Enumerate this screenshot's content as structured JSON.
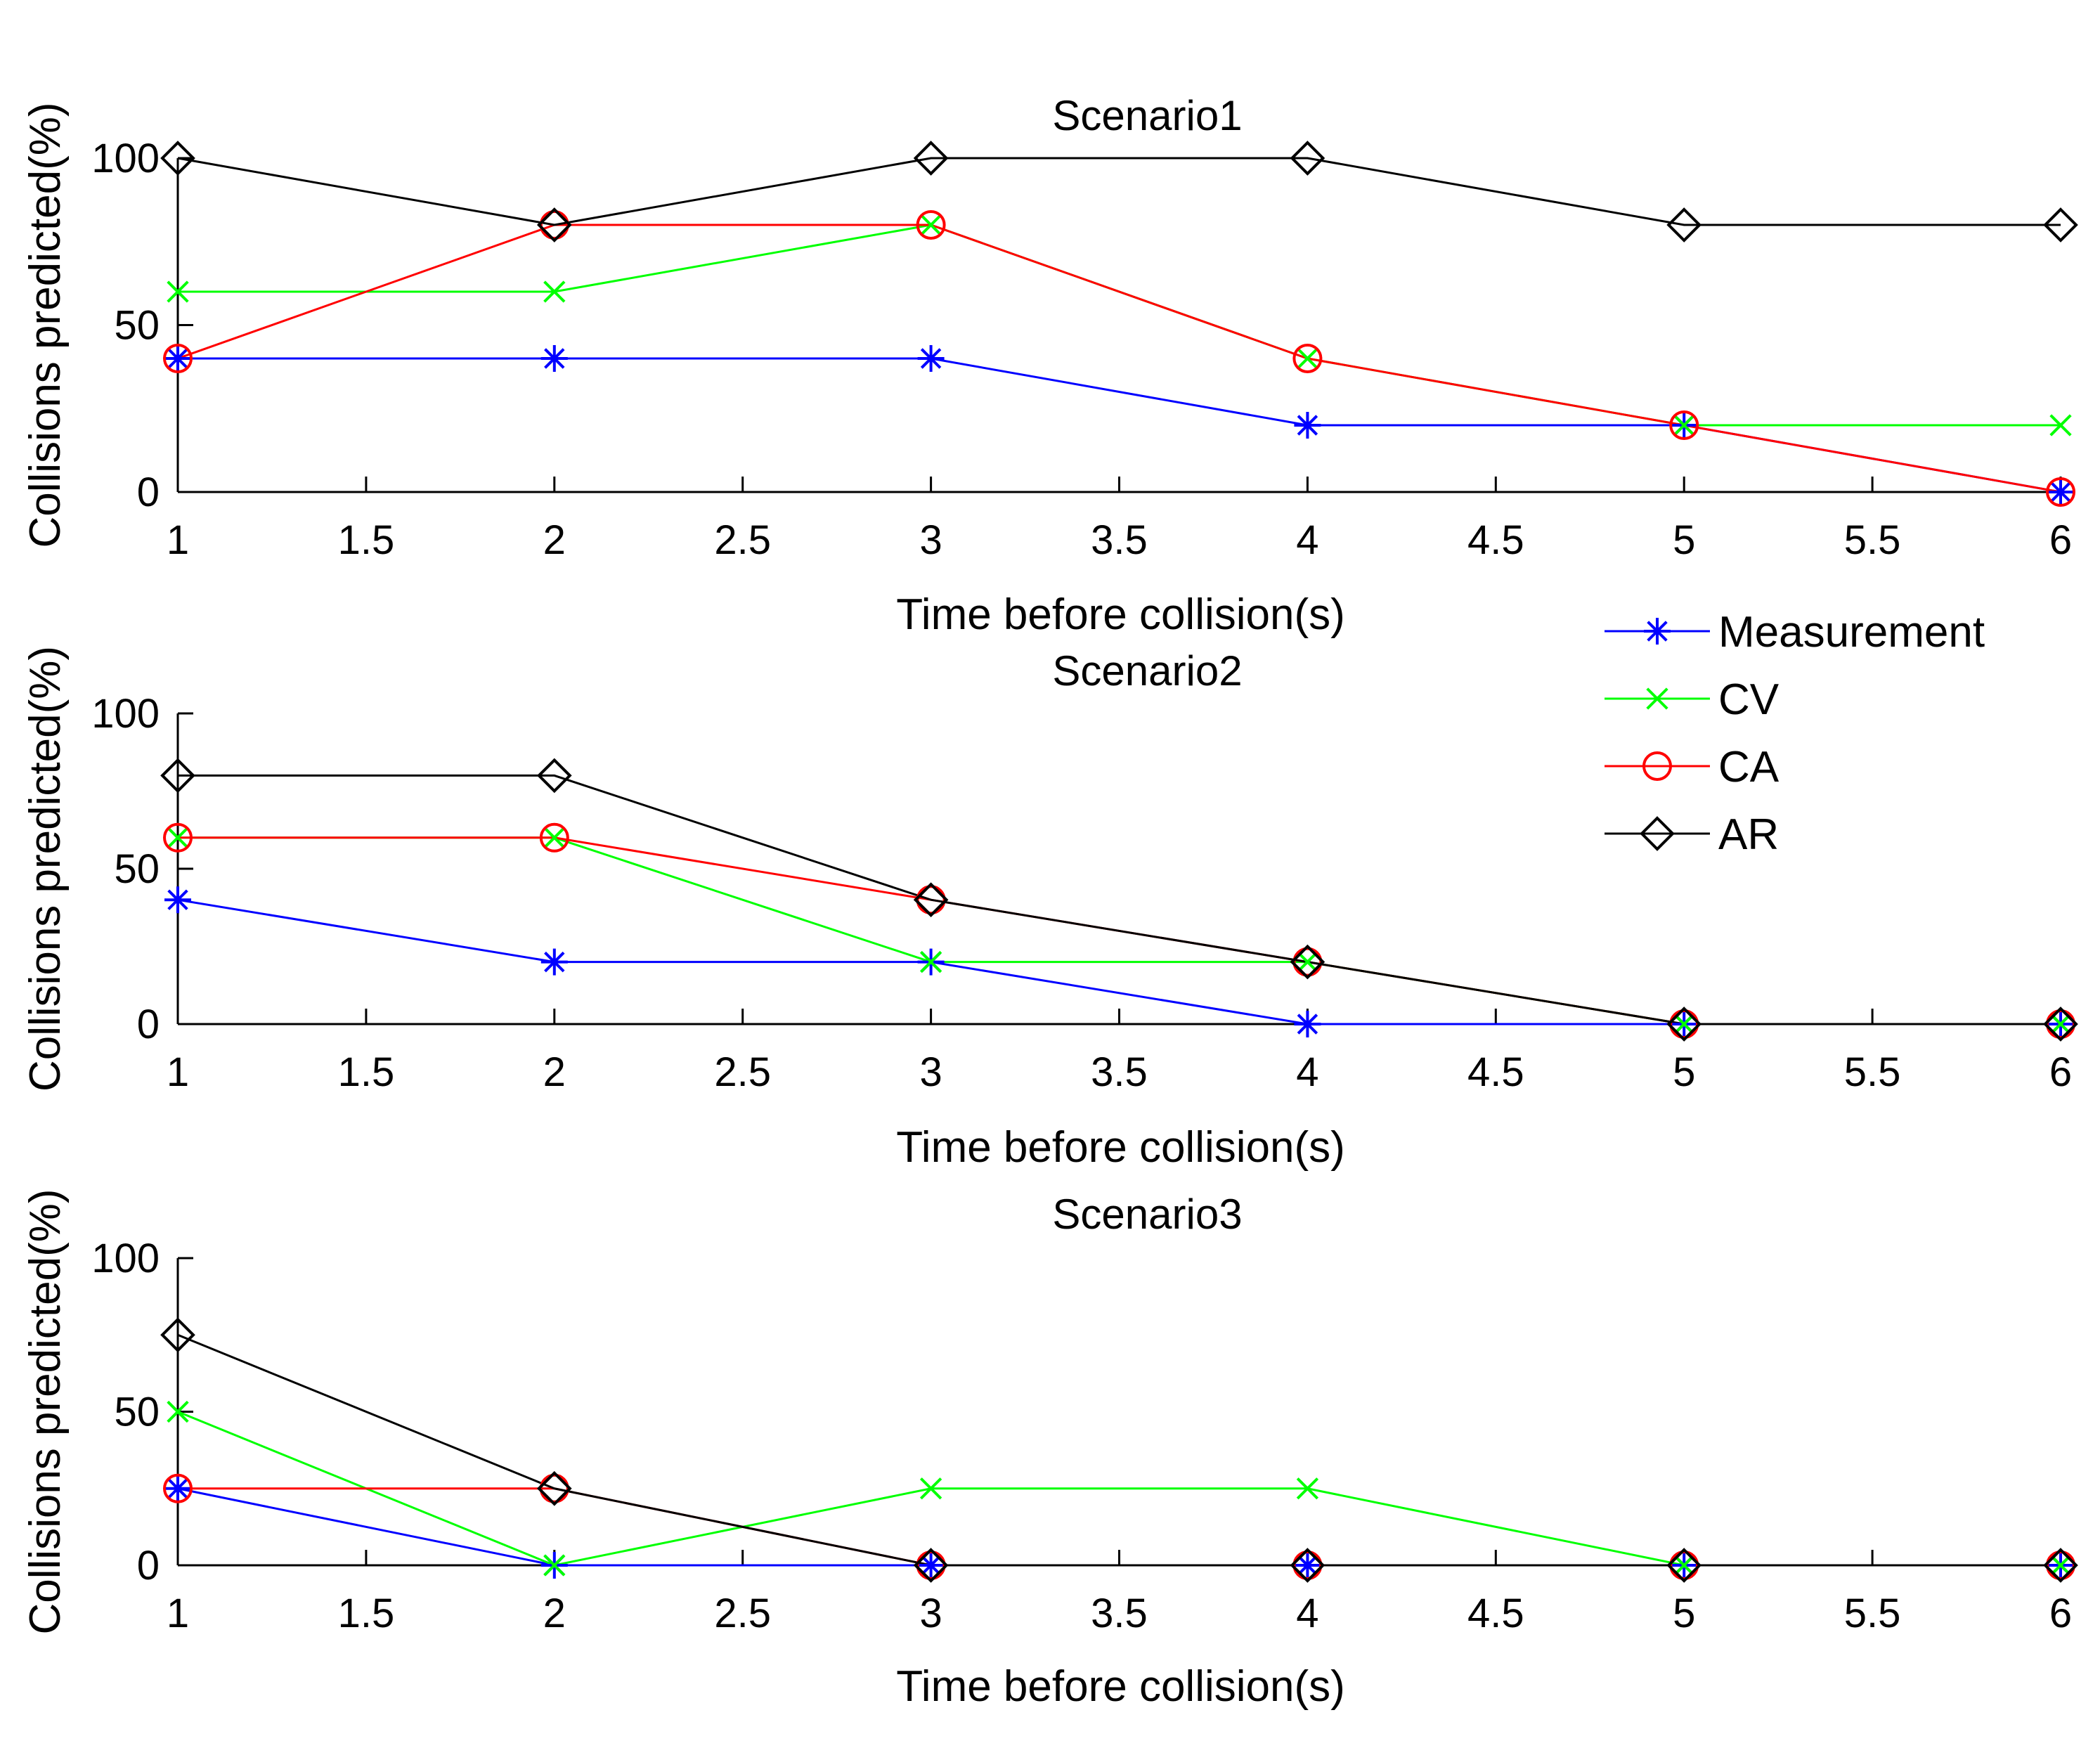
{
  "chart_data": [
    {
      "type": "line",
      "title": "Scenario1",
      "xlabel": "Time before collision(s)",
      "ylabel": "Collisions predicted(%)",
      "xlim": [
        1,
        6
      ],
      "ylim": [
        0,
        100
      ],
      "xticks": [
        1,
        1.5,
        2,
        2.5,
        3,
        3.5,
        4,
        4.5,
        5,
        5.5,
        6
      ],
      "yticks": [
        0,
        50,
        100
      ],
      "x": [
        1,
        2,
        3,
        4,
        5,
        6
      ],
      "series": [
        {
          "name": "Measurement",
          "color": "#0000ff",
          "marker": "asterisk",
          "values": [
            40,
            40,
            40,
            20,
            20,
            0
          ]
        },
        {
          "name": "CV",
          "color": "#00ff00",
          "marker": "x",
          "values": [
            60,
            60,
            80,
            40,
            20,
            20
          ]
        },
        {
          "name": "CA",
          "color": "#ff0000",
          "marker": "circle",
          "values": [
            40,
            80,
            80,
            40,
            20,
            0
          ]
        },
        {
          "name": "AR",
          "color": "#000000",
          "marker": "diamond",
          "values": [
            100,
            80,
            100,
            100,
            80,
            80
          ]
        }
      ]
    },
    {
      "type": "line",
      "title": "Scenario2",
      "xlabel": "Time before collision(s)",
      "ylabel": "Collisions predicted(%)",
      "xlim": [
        1,
        6
      ],
      "ylim": [
        0,
        100
      ],
      "xticks": [
        1,
        1.5,
        2,
        2.5,
        3,
        3.5,
        4,
        4.5,
        5,
        5.5,
        6
      ],
      "yticks": [
        0,
        50,
        100
      ],
      "x": [
        1,
        2,
        3,
        4,
        5,
        6
      ],
      "series": [
        {
          "name": "Measurement",
          "color": "#0000ff",
          "marker": "asterisk",
          "values": [
            40,
            20,
            20,
            0,
            0,
            0
          ]
        },
        {
          "name": "CV",
          "color": "#00ff00",
          "marker": "x",
          "values": [
            60,
            60,
            20,
            20,
            0,
            0
          ]
        },
        {
          "name": "CA",
          "color": "#ff0000",
          "marker": "circle",
          "values": [
            60,
            60,
            40,
            20,
            0,
            0
          ]
        },
        {
          "name": "AR",
          "color": "#000000",
          "marker": "diamond",
          "values": [
            80,
            80,
            40,
            20,
            0,
            0
          ]
        }
      ]
    },
    {
      "type": "line",
      "title": "Scenario3",
      "xlabel": "Time before collision(s)",
      "ylabel": "Collisions predicted(%)",
      "xlim": [
        1,
        6
      ],
      "ylim": [
        0,
        100
      ],
      "xticks": [
        1,
        1.5,
        2,
        2.5,
        3,
        3.5,
        4,
        4.5,
        5,
        5.5,
        6
      ],
      "yticks": [
        0,
        50,
        100
      ],
      "x": [
        1,
        2,
        3,
        4,
        5,
        6
      ],
      "series": [
        {
          "name": "Measurement",
          "color": "#0000ff",
          "marker": "asterisk",
          "values": [
            25,
            0,
            0,
            0,
            0,
            0
          ]
        },
        {
          "name": "CV",
          "color": "#00ff00",
          "marker": "x",
          "values": [
            50,
            0,
            25,
            25,
            0,
            0
          ]
        },
        {
          "name": "CA",
          "color": "#ff0000",
          "marker": "circle",
          "values": [
            25,
            25,
            0,
            0,
            0,
            0
          ]
        },
        {
          "name": "AR",
          "color": "#000000",
          "marker": "diamond",
          "values": [
            75,
            25,
            0,
            0,
            0,
            0
          ]
        }
      ]
    }
  ],
  "legend": {
    "placement": "right, between Scenario1 and Scenario2",
    "entries": [
      "Measurement",
      "CV",
      "CA",
      "AR"
    ]
  }
}
